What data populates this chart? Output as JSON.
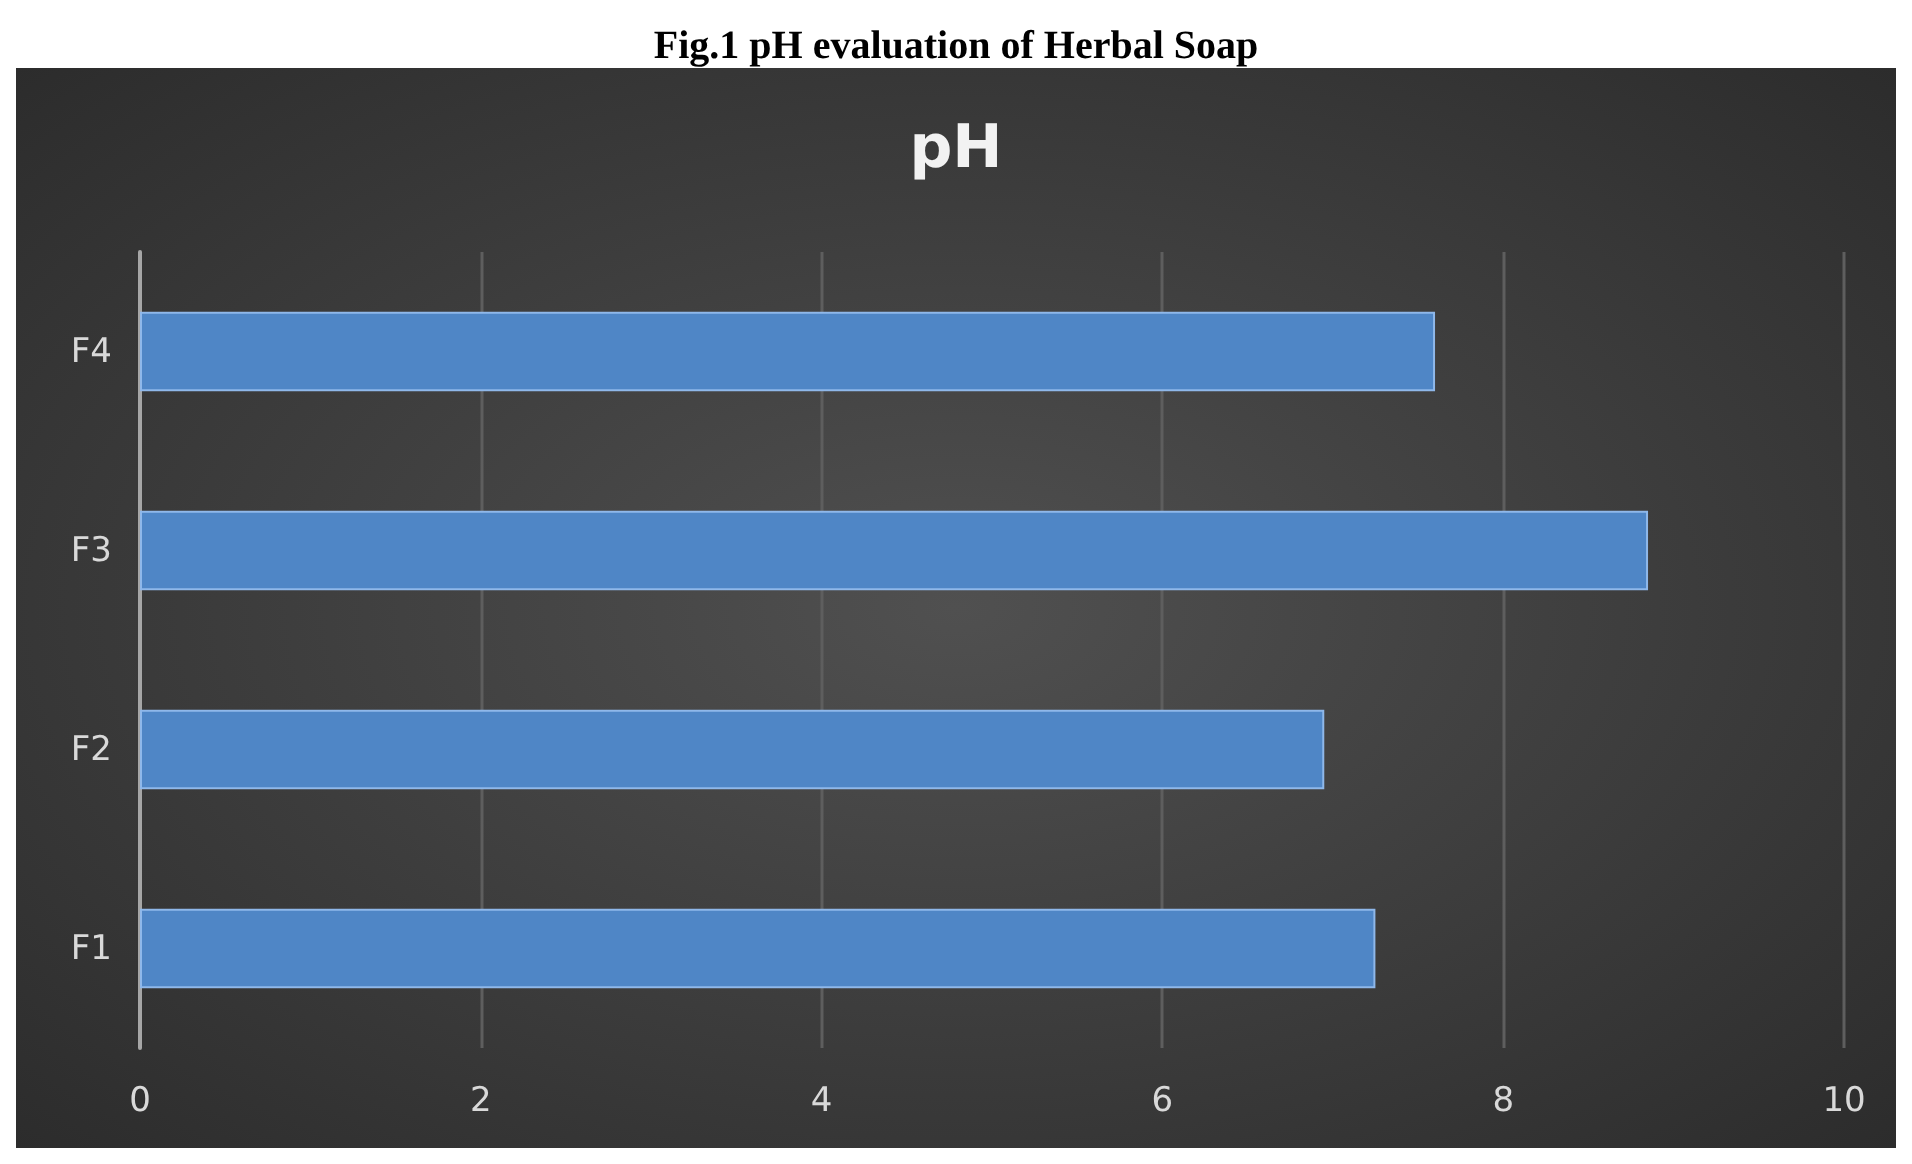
{
  "chart_data": {
    "type": "bar",
    "orientation": "horizontal",
    "title": "Fig.1 pH evaluation of Herbal Soap",
    "subtitle": "pH",
    "categories": [
      "F4",
      "F3",
      "F2",
      "F1"
    ],
    "values": [
      7.6,
      8.85,
      6.95,
      7.25
    ],
    "color": "#4f86c6",
    "xlim": [
      0,
      10
    ],
    "xticks": [
      0,
      2,
      4,
      6,
      8,
      10
    ],
    "grid": "x"
  }
}
